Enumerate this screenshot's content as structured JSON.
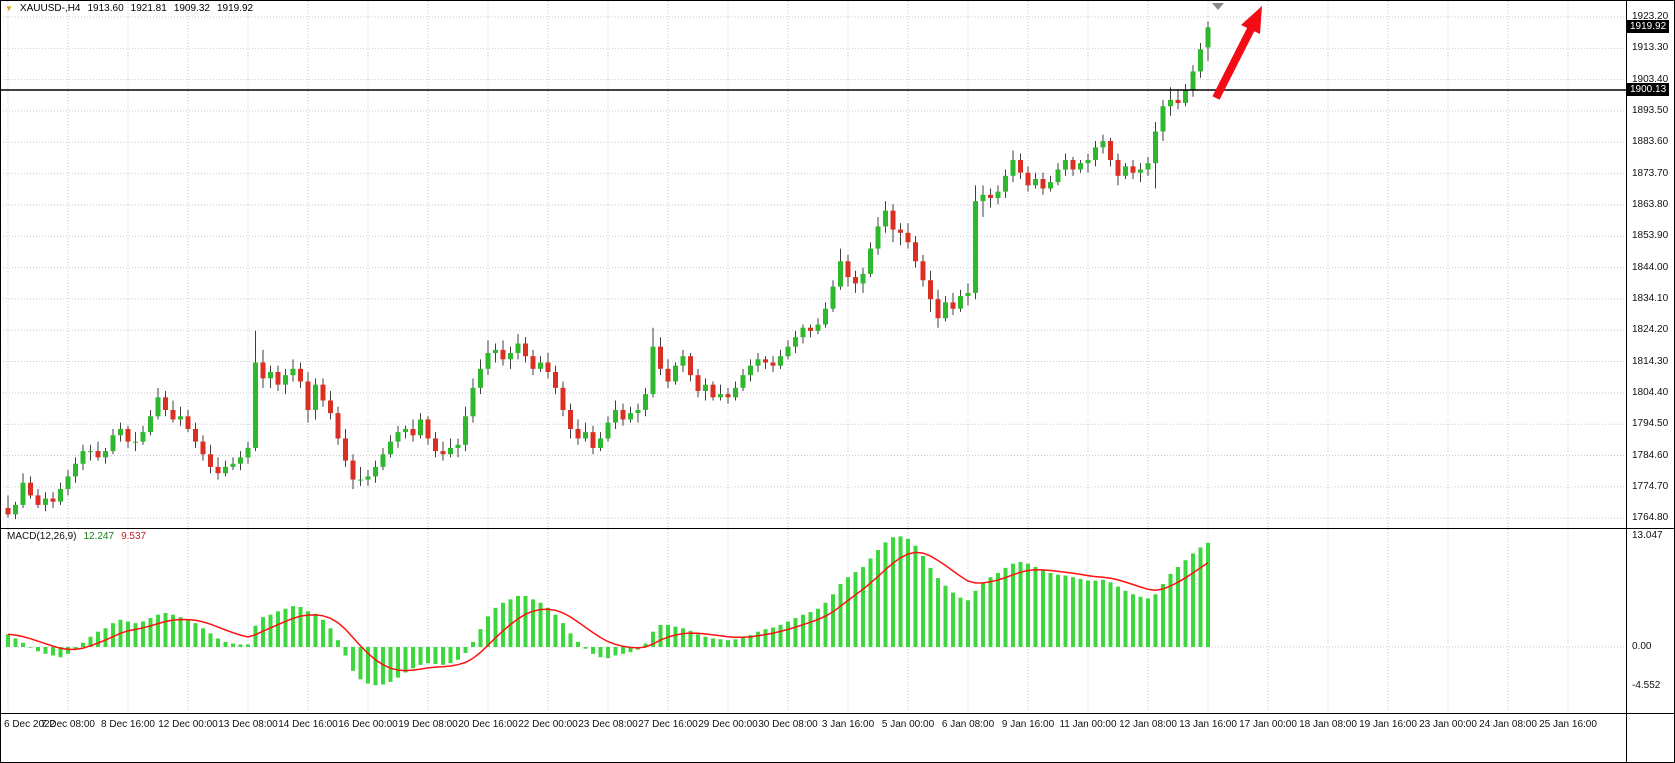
{
  "header": {
    "symbol_period": "XAUUSD-,H4",
    "open": "1913.60",
    "high": "1921.81",
    "low": "1909.32",
    "close": "1919.92"
  },
  "icons": {
    "quote_collapse": "▼",
    "chart_shift": "▼"
  },
  "price_axis": {
    "bid_label": "1919.92",
    "line_label": "1900.13"
  },
  "macd_panel": {
    "label": "MACD(12,26,9)",
    "value_main": "12.247",
    "value_signal": "9.537",
    "scale_max": "13.047",
    "scale_zero": "0.00",
    "scale_min": "-4.552"
  },
  "colors": {
    "bull": "#2eb82e",
    "bear": "#dc2f23",
    "wick": "#3f3f3f",
    "histogram": "#3cd73c",
    "signal": "#ff1010",
    "grid": "#c8c8d8",
    "line_black": "#000000",
    "arrow": "#f30b16",
    "price_box_bg": "#000000",
    "price_box_text": "#ffffff"
  },
  "chart_data": [
    {
      "type": "candlestick",
      "title": "XAUUSD-,H4",
      "symbol": "XAUUSD-",
      "timeframe": "H4",
      "current_ohlc": {
        "open": 1913.6,
        "high": 1921.81,
        "low": 1909.32,
        "close": 1919.92
      },
      "bid": 1919.92,
      "horizontal_line": 1900.13,
      "grid": true,
      "legend_position": "none",
      "y_axis": {
        "ylim": [
          1762.0,
          1928.6
        ],
        "ticks": [
          1923.2,
          1913.3,
          1903.4,
          1893.5,
          1883.6,
          1873.7,
          1863.8,
          1853.9,
          1844.0,
          1834.1,
          1824.2,
          1814.3,
          1804.4,
          1794.5,
          1784.6,
          1774.7,
          1764.8
        ]
      },
      "x_labels": [
        "6 Dec 2022",
        "7 Dec 08:00",
        "8 Dec 16:00",
        "12 Dec 00:00",
        "13 Dec 08:00",
        "14 Dec 16:00",
        "16 Dec 00:00",
        "19 Dec 08:00",
        "20 Dec 16:00",
        "22 Dec 00:00",
        "23 Dec 08:00",
        "27 Dec 16:00",
        "29 Dec 00:00",
        "30 Dec 08:00",
        "3 Jan 16:00",
        "5 Jan 00:00",
        "6 Jan 08:00",
        "9 Jan 16:00",
        "11 Jan 00:00",
        "12 Jan 08:00",
        "13 Jan 16:00",
        "17 Jan 00:00",
        "18 Jan 08:00",
        "19 Jan 16:00",
        "23 Jan 00:00",
        "24 Jan 08:00",
        "25 Jan 16:00"
      ],
      "bars_per_label": 8,
      "annotations": [
        {
          "type": "arrow",
          "direction": "up",
          "color": "#f30b16",
          "from_price": 1900.13,
          "to_price": 1925.0
        }
      ],
      "candles_ohlc": [
        [
          1768,
          1772,
          1765,
          1766
        ],
        [
          1766,
          1770,
          1764.5,
          1769
        ],
        [
          1769,
          1779,
          1768,
          1776
        ],
        [
          1776,
          1778,
          1771,
          1772
        ],
        [
          1772,
          1774,
          1768,
          1769
        ],
        [
          1769,
          1773,
          1767,
          1771
        ],
        [
          1771,
          1773,
          1768,
          1770
        ],
        [
          1770,
          1776,
          1769,
          1774
        ],
        [
          1774,
          1780,
          1772,
          1778
        ],
        [
          1778,
          1784,
          1776,
          1782
        ],
        [
          1782,
          1788,
          1780,
          1786
        ],
        [
          1786,
          1788,
          1783,
          1786
        ],
        [
          1786,
          1789,
          1783,
          1784
        ],
        [
          1784,
          1787,
          1782,
          1786
        ],
        [
          1786,
          1793,
          1785,
          1791
        ],
        [
          1791,
          1795,
          1789,
          1793
        ],
        [
          1793,
          1794,
          1787,
          1789
        ],
        [
          1789,
          1792,
          1786,
          1789
        ],
        [
          1789,
          1794,
          1788,
          1792
        ],
        [
          1792,
          1799,
          1791,
          1797
        ],
        [
          1797,
          1806,
          1796,
          1803
        ],
        [
          1803,
          1805,
          1797,
          1799
        ],
        [
          1799,
          1802,
          1795,
          1796
        ],
        [
          1796,
          1800,
          1794,
          1797
        ],
        [
          1797,
          1799,
          1792,
          1793
        ],
        [
          1793,
          1795,
          1787,
          1789
        ],
        [
          1789,
          1791,
          1783,
          1785
        ],
        [
          1785,
          1788,
          1779,
          1781
        ],
        [
          1781,
          1784,
          1777,
          1779
        ],
        [
          1779,
          1783,
          1778,
          1781
        ],
        [
          1781,
          1784,
          1780,
          1782
        ],
        [
          1782,
          1786,
          1780,
          1784
        ],
        [
          1784,
          1789,
          1782,
          1787
        ],
        [
          1787,
          1824,
          1786,
          1814
        ],
        [
          1814,
          1818,
          1806,
          1809
        ],
        [
          1809,
          1813,
          1806,
          1811
        ],
        [
          1811,
          1813,
          1805,
          1807
        ],
        [
          1807,
          1812,
          1804,
          1810
        ],
        [
          1810,
          1815,
          1808,
          1812
        ],
        [
          1812,
          1814,
          1806,
          1808
        ],
        [
          1808,
          1811,
          1795,
          1799
        ],
        [
          1799,
          1809,
          1796,
          1807
        ],
        [
          1807,
          1809,
          1800,
          1802
        ],
        [
          1802,
          1805,
          1796,
          1798
        ],
        [
          1798,
          1800,
          1788,
          1790
        ],
        [
          1790,
          1793,
          1781,
          1783
        ],
        [
          1783,
          1785,
          1774,
          1777
        ],
        [
          1777,
          1781,
          1775,
          1777
        ],
        [
          1777,
          1780,
          1775,
          1778
        ],
        [
          1778,
          1783,
          1776,
          1781
        ],
        [
          1781,
          1787,
          1780,
          1785
        ],
        [
          1785,
          1791,
          1784,
          1789
        ],
        [
          1789,
          1794,
          1787,
          1792
        ],
        [
          1792,
          1794,
          1790,
          1793
        ],
        [
          1793,
          1796,
          1789,
          1791
        ],
        [
          1791,
          1798,
          1790,
          1796
        ],
        [
          1796,
          1797,
          1788,
          1790
        ],
        [
          1790,
          1792,
          1784,
          1786
        ],
        [
          1786,
          1789,
          1783,
          1785
        ],
        [
          1785,
          1790,
          1784,
          1787
        ],
        [
          1787,
          1790,
          1784,
          1788
        ],
        [
          1788,
          1800,
          1786,
          1797
        ],
        [
          1797,
          1809,
          1795,
          1806
        ],
        [
          1806,
          1815,
          1804,
          1812
        ],
        [
          1812,
          1821,
          1810,
          1817
        ],
        [
          1817,
          1820,
          1814,
          1818
        ],
        [
          1818,
          1821,
          1813,
          1815
        ],
        [
          1815,
          1819,
          1812,
          1817
        ],
        [
          1817,
          1823,
          1815,
          1820
        ],
        [
          1820,
          1822,
          1814,
          1816
        ],
        [
          1816,
          1818,
          1810,
          1812
        ],
        [
          1812,
          1816,
          1811,
          1814
        ],
        [
          1814,
          1817,
          1809,
          1811
        ],
        [
          1811,
          1813,
          1804,
          1806
        ],
        [
          1806,
          1808,
          1797,
          1799
        ],
        [
          1799,
          1801,
          1790,
          1793
        ],
        [
          1793,
          1796,
          1788,
          1790
        ],
        [
          1790,
          1795,
          1789,
          1792
        ],
        [
          1792,
          1794,
          1785,
          1787
        ],
        [
          1787,
          1792,
          1786,
          1790
        ],
        [
          1790,
          1797,
          1789,
          1795
        ],
        [
          1795,
          1802,
          1793,
          1799
        ],
        [
          1799,
          1801,
          1794,
          1796
        ],
        [
          1796,
          1800,
          1795,
          1798
        ],
        [
          1798,
          1801,
          1795,
          1799
        ],
        [
          1799,
          1806,
          1797,
          1804
        ],
        [
          1804,
          1825,
          1803,
          1819
        ],
        [
          1819,
          1822,
          1810,
          1812
        ],
        [
          1812,
          1815,
          1806,
          1808
        ],
        [
          1808,
          1814,
          1807,
          1813
        ],
        [
          1813,
          1818,
          1811,
          1816
        ],
        [
          1816,
          1817,
          1808,
          1810
        ],
        [
          1810,
          1812,
          1803,
          1805
        ],
        [
          1805,
          1809,
          1802,
          1807
        ],
        [
          1807,
          1808,
          1802,
          1803
        ],
        [
          1803,
          1807,
          1802,
          1804
        ],
        [
          1804,
          1806,
          1801,
          1803
        ],
        [
          1803,
          1808,
          1802,
          1806
        ],
        [
          1806,
          1812,
          1805,
          1810
        ],
        [
          1810,
          1815,
          1808,
          1813
        ],
        [
          1813,
          1817,
          1811,
          1815
        ],
        [
          1815,
          1816,
          1812,
          1814
        ],
        [
          1814,
          1816,
          1811,
          1813
        ],
        [
          1813,
          1818,
          1812,
          1816
        ],
        [
          1816,
          1821,
          1815,
          1819
        ],
        [
          1819,
          1824,
          1817,
          1822
        ],
        [
          1822,
          1826,
          1820,
          1825
        ],
        [
          1825,
          1826,
          1822,
          1824
        ],
        [
          1824,
          1828,
          1823,
          1826
        ],
        [
          1826,
          1833,
          1825,
          1831
        ],
        [
          1831,
          1840,
          1830,
          1838
        ],
        [
          1838,
          1850,
          1837,
          1846
        ],
        [
          1846,
          1848,
          1838,
          1841
        ],
        [
          1841,
          1843,
          1836,
          1839
        ],
        [
          1839,
          1844,
          1836,
          1842
        ],
        [
          1842,
          1852,
          1841,
          1850
        ],
        [
          1850,
          1860,
          1848,
          1857
        ],
        [
          1857,
          1865,
          1855,
          1862
        ],
        [
          1862,
          1864,
          1852,
          1856
        ],
        [
          1856,
          1858,
          1851,
          1855
        ],
        [
          1855,
          1858,
          1850,
          1852
        ],
        [
          1852,
          1854,
          1844,
          1846
        ],
        [
          1846,
          1848,
          1838,
          1840
        ],
        [
          1840,
          1843,
          1830,
          1834
        ],
        [
          1834,
          1837,
          1825,
          1828
        ],
        [
          1828,
          1835,
          1827,
          1833
        ],
        [
          1833,
          1836,
          1829,
          1831
        ],
        [
          1831,
          1837,
          1830,
          1835
        ],
        [
          1835,
          1839,
          1832,
          1836
        ],
        [
          1836,
          1870,
          1834,
          1865
        ],
        [
          1865,
          1870,
          1860,
          1867
        ],
        [
          1867,
          1869,
          1863,
          1866
        ],
        [
          1866,
          1870,
          1864,
          1868
        ],
        [
          1868,
          1875,
          1866,
          1873
        ],
        [
          1873,
          1881,
          1871,
          1878
        ],
        [
          1878,
          1880,
          1872,
          1874
        ],
        [
          1874,
          1876,
          1868,
          1870
        ],
        [
          1870,
          1874,
          1869,
          1872
        ],
        [
          1872,
          1874,
          1867,
          1869
        ],
        [
          1869,
          1873,
          1868,
          1871
        ],
        [
          1871,
          1877,
          1870,
          1875
        ],
        [
          1875,
          1880,
          1873,
          1878
        ],
        [
          1878,
          1879,
          1873,
          1875
        ],
        [
          1875,
          1878,
          1874,
          1877
        ],
        [
          1877,
          1880,
          1874,
          1878
        ],
        [
          1878,
          1884,
          1876,
          1882
        ],
        [
          1882,
          1886,
          1880,
          1884
        ],
        [
          1884,
          1885,
          1876,
          1878
        ],
        [
          1878,
          1880,
          1870,
          1873
        ],
        [
          1873,
          1877,
          1872,
          1876
        ],
        [
          1876,
          1878,
          1872,
          1874
        ],
        [
          1874,
          1877,
          1871,
          1875
        ],
        [
          1875,
          1879,
          1873,
          1877
        ],
        [
          1877,
          1890,
          1869,
          1887
        ],
        [
          1887,
          1897,
          1884,
          1895
        ],
        [
          1895,
          1901,
          1892,
          1897
        ],
        [
          1897,
          1900,
          1894,
          1896
        ],
        [
          1896,
          1902,
          1895,
          1900
        ],
        [
          1900,
          1908,
          1898,
          1906
        ],
        [
          1906,
          1915,
          1904,
          1913
        ],
        [
          1913.6,
          1921.81,
          1909.32,
          1919.92
        ]
      ]
    },
    {
      "type": "bar+line",
      "name": "MACD(12,26,9)",
      "value_main": 12.247,
      "value_signal": 9.537,
      "scale": {
        "max": 13.047,
        "zero": 0.0,
        "min": -4.552
      },
      "signal_period": 9,
      "macd": [
        1.5,
        1.0,
        0.5,
        0.0,
        -0.5,
        -0.8,
        -1.0,
        -1.2,
        -0.8,
        -0.3,
        0.5,
        1.2,
        1.8,
        2.2,
        2.8,
        3.2,
        3.0,
        2.8,
        3.0,
        3.4,
        3.8,
        4.0,
        3.8,
        3.5,
        3.2,
        2.8,
        2.2,
        1.6,
        1.0,
        0.6,
        0.4,
        0.3,
        0.3,
        2.5,
        3.5,
        3.8,
        4.2,
        4.5,
        4.8,
        4.7,
        4.2,
        3.9,
        3.2,
        2.2,
        0.8,
        -1.0,
        -2.8,
        -3.8,
        -4.3,
        -4.5,
        -4.4,
        -4.1,
        -3.6,
        -3.0,
        -2.5,
        -2.1,
        -1.9,
        -2.0,
        -2.1,
        -1.9,
        -1.5,
        -0.7,
        0.6,
        2.1,
        3.6,
        4.6,
        5.2,
        5.6,
        6.0,
        6.0,
        5.6,
        5.2,
        4.6,
        3.8,
        2.8,
        1.6,
        0.6,
        -0.2,
        -0.8,
        -1.2,
        -1.3,
        -1.0,
        -0.8,
        -0.6,
        -0.3,
        0.4,
        1.8,
        2.6,
        2.6,
        2.4,
        2.2,
        1.9,
        1.5,
        1.2,
        1.0,
        0.9,
        0.8,
        0.9,
        1.1,
        1.4,
        1.8,
        2.1,
        2.3,
        2.6,
        3.0,
        3.4,
        3.8,
        4.1,
        4.5,
        5.2,
        6.2,
        7.4,
        8.2,
        8.8,
        9.4,
        10.4,
        11.4,
        12.3,
        12.9,
        13.0,
        12.7,
        11.9,
        10.7,
        9.3,
        8.1,
        7.2,
        6.4,
        5.8,
        5.5,
        6.6,
        7.6,
        8.2,
        8.7,
        9.3,
        9.8,
        10.0,
        9.8,
        9.4,
        9.0,
        8.7,
        8.5,
        8.4,
        8.2,
        8.0,
        7.8,
        7.8,
        7.9,
        7.6,
        7.1,
        6.6,
        6.2,
        5.9,
        5.7,
        6.2,
        7.4,
        8.6,
        9.4,
        10.2,
        11.0,
        11.7,
        12.247
      ]
    }
  ]
}
